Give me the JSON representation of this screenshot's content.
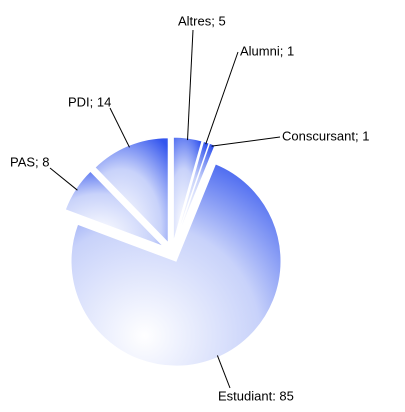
{
  "chart_data": {
    "type": "pie",
    "categories": [
      "Altres",
      "Alumni",
      "Conscursant",
      "Estudiant",
      "PAS",
      "PDI"
    ],
    "values": [
      5,
      1,
      1,
      85,
      8,
      14
    ],
    "value_labels": [
      "Altres; 5",
      "Alumni; 1",
      "Conscursant; 1",
      "Estudiant: 85",
      "PAS; 8",
      "PDI; 14"
    ],
    "color": "#3355ee"
  }
}
